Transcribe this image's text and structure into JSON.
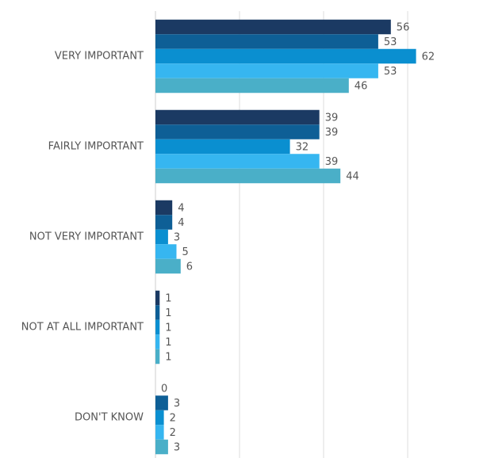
{
  "chart_data": {
    "type": "barh",
    "categories": [
      "VERY IMPORTANT",
      "FAIRLY IMPORTANT",
      "NOT VERY IMPORTANT",
      "NOT AT ALL IMPORTANT",
      "DON'T KNOW"
    ],
    "series": [
      {
        "color": "#1b3a63",
        "values": [
          56,
          39,
          4,
          1,
          0
        ]
      },
      {
        "color": "#0e5f96",
        "values": [
          53,
          39,
          4,
          1,
          3
        ]
      },
      {
        "color": "#0a8fd0",
        "values": [
          62,
          32,
          3,
          1,
          2
        ]
      },
      {
        "color": "#36b6f0",
        "values": [
          53,
          39,
          5,
          1,
          2
        ]
      },
      {
        "color": "#4aafc8",
        "values": [
          46,
          44,
          6,
          1,
          3
        ]
      }
    ],
    "xlim": [
      0,
      75
    ],
    "xgrid": [
      20,
      40,
      60
    ],
    "grid": true
  }
}
